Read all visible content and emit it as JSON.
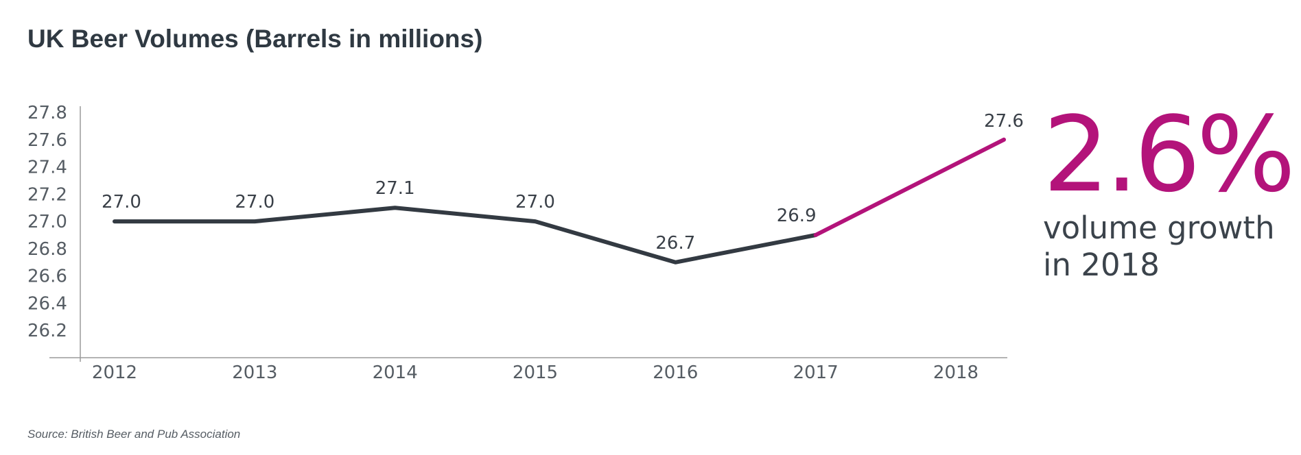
{
  "chart_data": {
    "type": "line",
    "title": "UK Beer Volumes (Barrels in millions)",
    "xlabel": "",
    "ylabel": "",
    "categories": [
      "2012",
      "2013",
      "2014",
      "2015",
      "2016",
      "2017",
      "2018"
    ],
    "series": [
      {
        "values": [
          27.0,
          27.0,
          27.1,
          27.0,
          26.7,
          26.9,
          27.6
        ],
        "labels": [
          "27.0",
          "27.0",
          "27.1",
          "27.0",
          "26.7",
          "26.9",
          "27.6"
        ]
      }
    ],
    "ylim": [
      26.0,
      27.8
    ],
    "yticks": [
      "26.2",
      "26.4",
      "26.6",
      "26.8",
      "27.0",
      "27.2",
      "27.4",
      "27.6",
      "27.8"
    ],
    "grid": false,
    "legend": "none",
    "highlight_segment": {
      "from": "2017",
      "to": "2018"
    },
    "colors": {
      "line": "#333a42",
      "highlight": "#b3137a",
      "axis": "#9a9a9a"
    }
  },
  "highlight": {
    "value": "2.6%",
    "caption_line1": "volume growth",
    "caption_line2": "in 2018"
  },
  "source": "Source: British Beer and Pub Association"
}
